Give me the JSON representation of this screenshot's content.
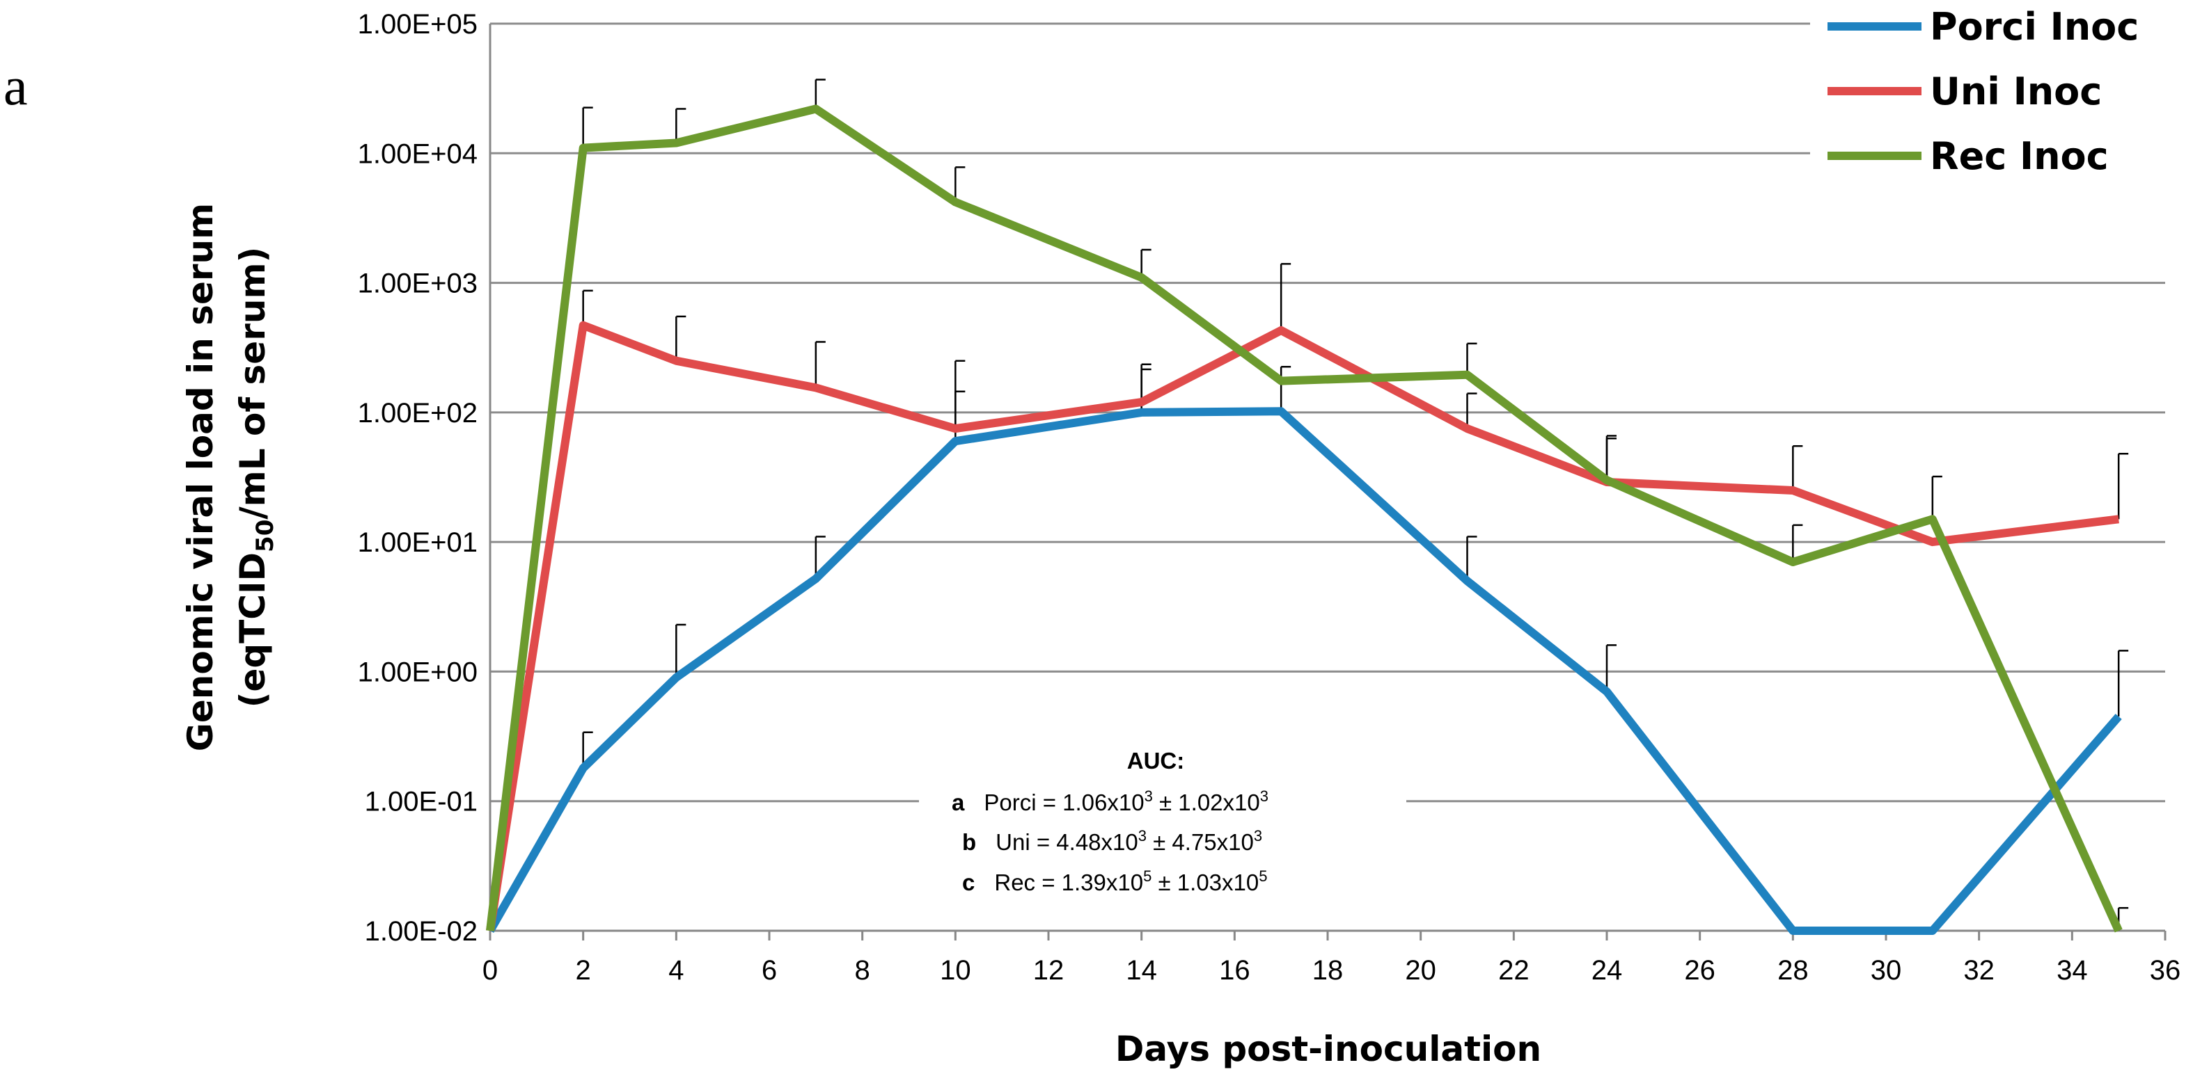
{
  "chart_data": {
    "type": "line",
    "panel_label": "a",
    "xlabel": "Days post-inoculation",
    "ylabel_line1": "Genomic viral load in serum",
    "ylabel_line2_pre": "(eqTCID",
    "ylabel_line2_sub": "50",
    "ylabel_line2_post": "/mL of serum)",
    "xlim": [
      0,
      36
    ],
    "x_ticks": [
      0,
      2,
      4,
      6,
      8,
      10,
      12,
      14,
      16,
      18,
      20,
      22,
      24,
      26,
      28,
      30,
      32,
      34,
      36
    ],
    "x_tick_labels": [
      "0",
      "2",
      "4",
      "6",
      "8",
      "10",
      "12",
      "14",
      "16",
      "18",
      "20",
      "22",
      "24",
      "26",
      "28",
      "30",
      "32",
      "34",
      "36"
    ],
    "yscale": "log",
    "ylim": [
      0.01,
      100000
    ],
    "y_ticks": [
      0.01,
      0.1,
      1,
      10,
      100,
      1000,
      10000,
      100000
    ],
    "y_tick_labels": [
      "1.00E-02",
      "1.00E-01",
      "1.00E+00",
      "1.00E+01",
      "1.00E+02",
      "1.00E+03",
      "1.00E+04",
      "1.00E+05"
    ],
    "grid": true,
    "legend_position": "top-right",
    "x": [
      0,
      2,
      4,
      7,
      10,
      14,
      17,
      21,
      24,
      28,
      31,
      35
    ],
    "series": [
      {
        "name": "Porci Inoc",
        "color": "#1f82c0",
        "values": [
          0.01,
          0.18,
          0.9,
          5.2,
          60,
          100,
          102,
          5,
          0.7,
          0.01,
          0.01,
          0.45
        ],
        "error_upper": [
          null,
          0.34,
          2.3,
          11,
          145,
          215,
          225,
          11,
          1.6,
          null,
          null,
          1.45
        ]
      },
      {
        "name": "Uni Inoc",
        "color": "#e04b4b",
        "values": [
          0.01,
          470,
          250,
          155,
          75,
          120,
          430,
          75,
          29,
          25,
          10,
          15
        ],
        "error_upper": [
          null,
          870,
          550,
          350,
          250,
          235,
          1400,
          140,
          63,
          55,
          null,
          48
        ]
      },
      {
        "name": "Rec Inoc",
        "color": "#6c9a2e",
        "values": [
          0.01,
          11000,
          12000,
          22000,
          4200,
          1100,
          175,
          195,
          30,
          7,
          15,
          0.01
        ],
        "error_upper": [
          null,
          22500,
          22000,
          37000,
          7800,
          1800,
          null,
          340,
          66,
          13.5,
          32,
          0.015
        ]
      }
    ],
    "annotation": {
      "title": "AUC:",
      "lines": [
        {
          "letter": "a",
          "label": "Porci = 1.06x10",
          "exp1": "3",
          "mid": " ± 1.02x10",
          "exp2": "3"
        },
        {
          "letter": "b",
          "label": "Uni = 4.48x10",
          "exp1": "3",
          "mid": " ± 4.75x10",
          "exp2": "3"
        },
        {
          "letter": "c",
          "label": "Rec = 1.39x10",
          "exp1": "5",
          "mid": " ± 1.03x10",
          "exp2": "5"
        }
      ]
    }
  }
}
